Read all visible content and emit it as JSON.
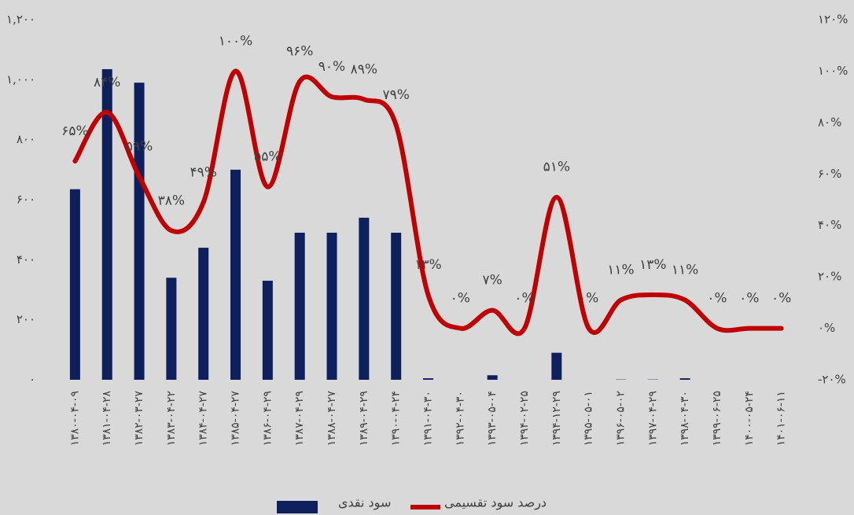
{
  "chart_data": {
    "type": "bar_line",
    "categories": [
      "۱۳۸۰-۰۴-۰۹",
      "۱۳۸۱-۰۴-۲۸",
      "۱۳۸۲-۰۳-۲۷",
      "۱۳۸۳-۰۴-۲۲",
      "۱۳۸۴-۰۴-۲۷",
      "۱۳۸۵-۰۴-۲۷",
      "۱۳۸۶-۰۴-۲۹",
      "۱۳۸۷-۰۴-۲۹",
      "۱۳۸۸-۰۴-۲۷",
      "۱۳۸۹-۰۴-۲۹",
      "۱۳۹۰-۰۴-۲۴",
      "۱۳۹۱-۰۴-۳۰",
      "۱۳۹۲-۰۴-۳۰",
      "۱۳۹۳-۰۵-۰۴",
      "۱۳۹۴-۰۲-۲۵",
      "۱۳۹۴-۱۲-۲۹",
      "۱۳۹۵-۰۵-۰۱",
      "۱۳۹۶-۰۵-۰۲",
      "۱۳۹۷-۰۴-۲۹",
      "۱۳۹۸-۰۴-۳۰",
      "۱۳۹۹-۰۶-۲۵",
      "۱۴۰۰-۰۵-۲۴",
      "۱۴۰۱-۰۶-۱۱"
    ],
    "series": [
      {
        "name": "سود نقدی",
        "color": "#0d1f5c",
        "kind": "bar",
        "axis": "y",
        "values": [
          635,
          1035,
          990,
          340,
          440,
          700,
          330,
          490,
          490,
          540,
          490,
          5,
          0,
          15,
          0,
          90,
          0,
          1,
          1,
          5,
          0,
          0,
          0
        ]
      },
      {
        "name": "درصد سود تقسیمی",
        "color": "#c00000",
        "kind": "line",
        "axis": "y2",
        "values": [
          65,
          84,
          59,
          38,
          49,
          100,
          55,
          96,
          90,
          89,
          79,
          13,
          0,
          7,
          0,
          51,
          0,
          11,
          13,
          11,
          0,
          0,
          0
        ],
        "value_labels": [
          "۶۵%",
          "۸۴%",
          "۵۹%",
          "۳۸%",
          "۴۹%",
          "۱۰۰%",
          "۵۵%",
          "۹۶%",
          "۹۰%",
          "۸۹%",
          "۷۹%",
          "۱۳%",
          "۰%",
          "۷%",
          "۰%",
          "۵۱%",
          "۰%",
          "۱۱%",
          "۱۳%",
          "۱۱%",
          "۰%",
          "۰%",
          "۰%"
        ]
      }
    ],
    "ylim": [
      0,
      1200
    ],
    "yticks": [
      {
        "value": 0,
        "label": "۰"
      },
      {
        "value": 200,
        "label": "۲۰۰"
      },
      {
        "value": 400,
        "label": "۴۰۰"
      },
      {
        "value": 600,
        "label": "۶۰۰"
      },
      {
        "value": 800,
        "label": "۸۰۰"
      },
      {
        "value": 1000,
        "label": "۱,۰۰۰"
      },
      {
        "value": 1200,
        "label": "۱,۲۰۰"
      }
    ],
    "y2lim": [
      -20,
      120
    ],
    "y2ticks": [
      {
        "value": -20,
        "label": "-۲۰%"
      },
      {
        "value": 0,
        "label": "۰%"
      },
      {
        "value": 20,
        "label": "۲۰%"
      },
      {
        "value": 40,
        "label": "۴۰%"
      },
      {
        "value": 60,
        "label": "۶۰%"
      },
      {
        "value": 80,
        "label": "۸۰%"
      },
      {
        "value": 100,
        "label": "۱۰۰%"
      },
      {
        "value": 120,
        "label": "۱۲۰%"
      }
    ]
  }
}
